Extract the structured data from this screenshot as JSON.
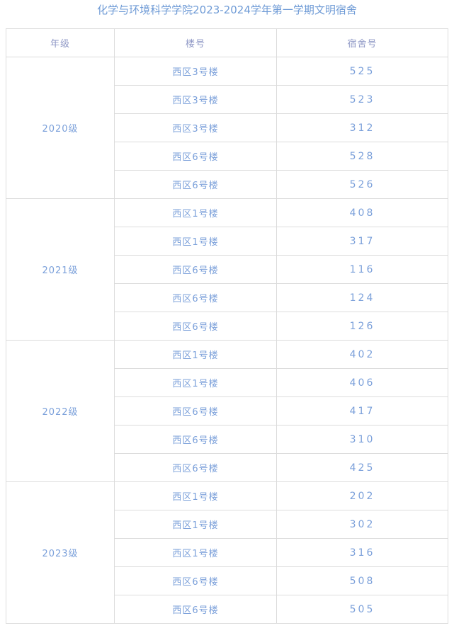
{
  "title": "化学与环境科学学院2023-2024学年第一学期文明宿舍",
  "headers": [
    "年级",
    "楼号",
    "宿舍号"
  ],
  "groups": [
    {
      "grade": "2020级",
      "rows": [
        [
          "西区3号楼",
          "525"
        ],
        [
          "西区3号楼",
          "523"
        ],
        [
          "西区3号楼",
          "312"
        ],
        [
          "西区6号楼",
          "528"
        ],
        [
          "西区6号楼",
          "526"
        ]
      ]
    },
    {
      "grade": "2021级",
      "rows": [
        [
          "西区1号楼",
          "408"
        ],
        [
          "西区1号楼",
          "317"
        ],
        [
          "西区6号楼",
          "116"
        ],
        [
          "西区6号楼",
          "124"
        ],
        [
          "西区6号楼",
          "126"
        ]
      ]
    },
    {
      "grade": "2022级",
      "rows": [
        [
          "西区1号楼",
          "402"
        ],
        [
          "西区1号楼",
          "406"
        ],
        [
          "西区6号楼",
          "417"
        ],
        [
          "西区6号楼",
          "310"
        ],
        [
          "西区6号楼",
          "425"
        ]
      ]
    },
    {
      "grade": "2023级",
      "rows": [
        [
          "西区1号楼",
          "202"
        ],
        [
          "西区1号楼",
          "302"
        ],
        [
          "西区1号楼",
          "316"
        ],
        [
          "西区6号楼",
          "508"
        ],
        [
          "西区6号楼",
          "505"
        ]
      ]
    }
  ],
  "colors": {
    "text": "#7ba0da",
    "header": "#8f98c6",
    "border": "#dcdcdc"
  }
}
